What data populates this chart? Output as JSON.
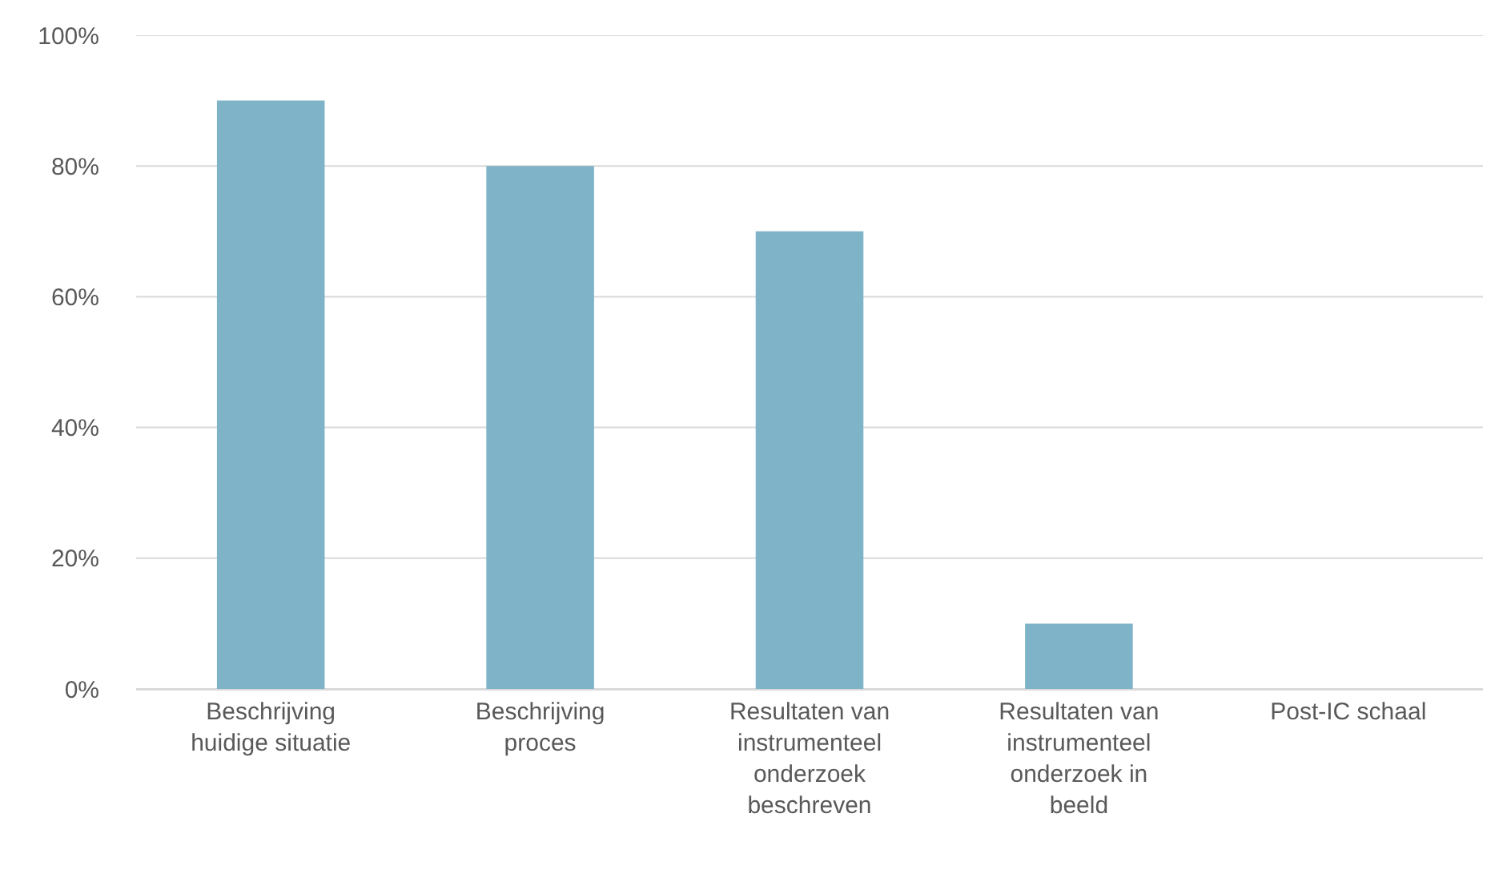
{
  "chart_data": {
    "type": "bar",
    "categories": [
      "Beschrijving huidige situatie",
      "Beschrijving proces",
      "Resultaten van instrumenteel onderzoek beschreven",
      "Resultaten van instrumenteel onderzoek in beeld",
      "Post-IC schaal"
    ],
    "values": [
      90,
      80,
      70,
      10,
      0
    ],
    "color": "#7fb3c8",
    "ylim": [
      0,
      100
    ],
    "yticks": [
      {
        "value": 0,
        "label": "0%"
      },
      {
        "value": 20,
        "label": "20%"
      },
      {
        "value": 40,
        "label": "40%"
      },
      {
        "value": 60,
        "label": "60%"
      },
      {
        "value": 80,
        "label": "80%"
      },
      {
        "value": 100,
        "label": "100%"
      }
    ],
    "grid": "y"
  }
}
